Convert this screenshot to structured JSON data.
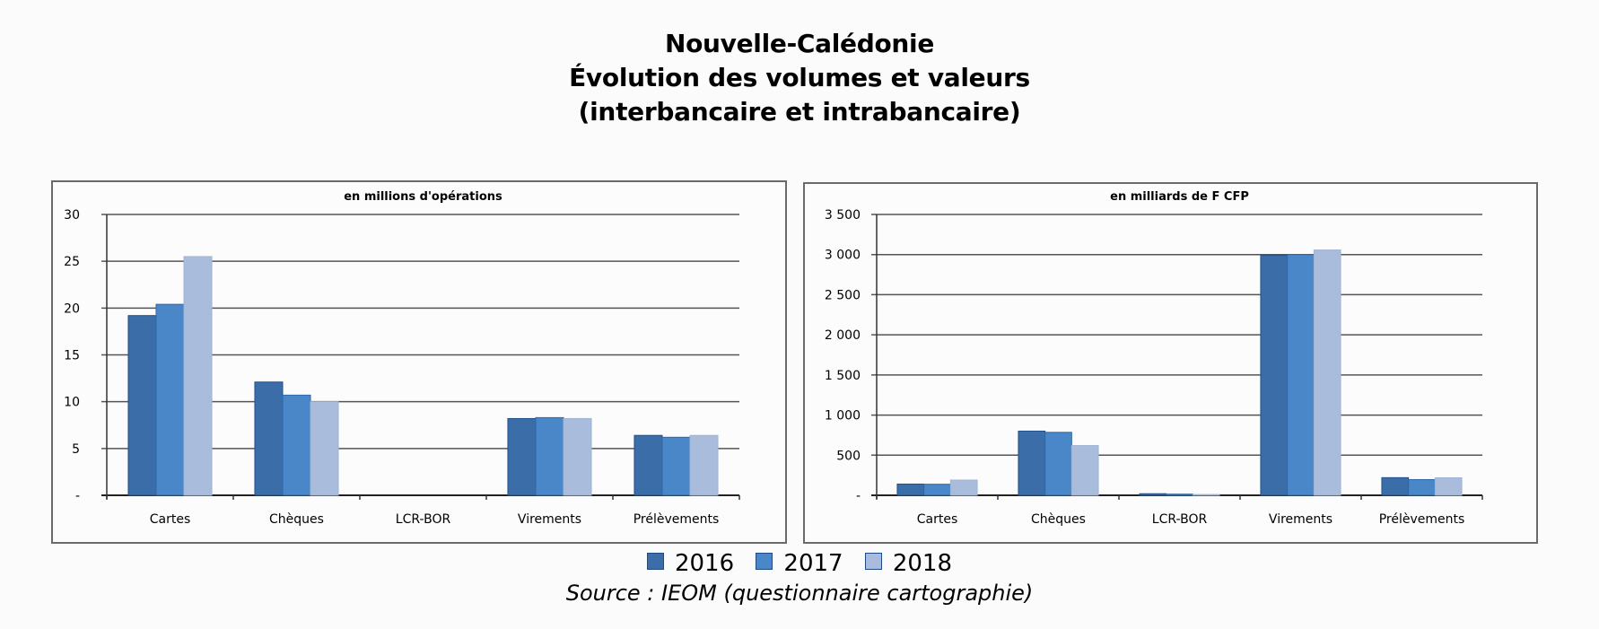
{
  "title": {
    "line1": "Nouvelle-Calédonie",
    "line2": "Évolution des volumes et valeurs",
    "line3": "(interbancaire et intrabancaire)"
  },
  "legend": [
    {
      "label": "2016",
      "color": "#3b6ea8"
    },
    {
      "label": "2017",
      "color": "#4a87c8"
    },
    {
      "label": "2018",
      "color": "#a9bcdc"
    }
  ],
  "source": "Source : IEOM (questionnaire cartographie)",
  "chart_data": [
    {
      "type": "bar",
      "title": "en millions d'opérations",
      "xlabel": "",
      "ylabel": "",
      "categories": [
        "Cartes",
        "Chèques",
        "LCR-BOR",
        "Virements",
        "Prélèvements"
      ],
      "series": [
        {
          "name": "2016",
          "values": [
            19.2,
            12.1,
            0,
            8.2,
            6.4
          ]
        },
        {
          "name": "2017",
          "values": [
            20.4,
            10.7,
            0,
            8.3,
            6.2
          ]
        },
        {
          "name": "2018",
          "values": [
            25.5,
            10.0,
            0,
            8.2,
            6.4
          ]
        }
      ],
      "ylim": [
        0,
        30
      ],
      "yticks": [
        0,
        5,
        10,
        15,
        20,
        25,
        30
      ],
      "ytick_labels": [
        "-",
        "5",
        "10",
        "15",
        "20",
        "25",
        "30"
      ],
      "grid": true,
      "legend_position": "bottom"
    },
    {
      "type": "bar",
      "title": "en milliards de F CFP",
      "xlabel": "",
      "ylabel": "",
      "categories": [
        "Cartes",
        "Chèques",
        "LCR-BOR",
        "Virements",
        "Prélèvements"
      ],
      "series": [
        {
          "name": "2016",
          "values": [
            140,
            800,
            20,
            2990,
            220
          ]
        },
        {
          "name": "2017",
          "values": [
            138,
            785,
            15,
            3000,
            196
          ]
        },
        {
          "name": "2018",
          "values": [
            190,
            620,
            10,
            3057,
            218
          ]
        }
      ],
      "ylim": [
        0,
        3500
      ],
      "yticks": [
        0,
        500,
        1000,
        1500,
        2000,
        2500,
        3000,
        3500
      ],
      "ytick_labels": [
        "-",
        "500",
        "1 000",
        "1 500",
        "2 000",
        "2 500",
        "3 000",
        "3 500"
      ],
      "grid": true,
      "legend_position": "bottom"
    }
  ]
}
